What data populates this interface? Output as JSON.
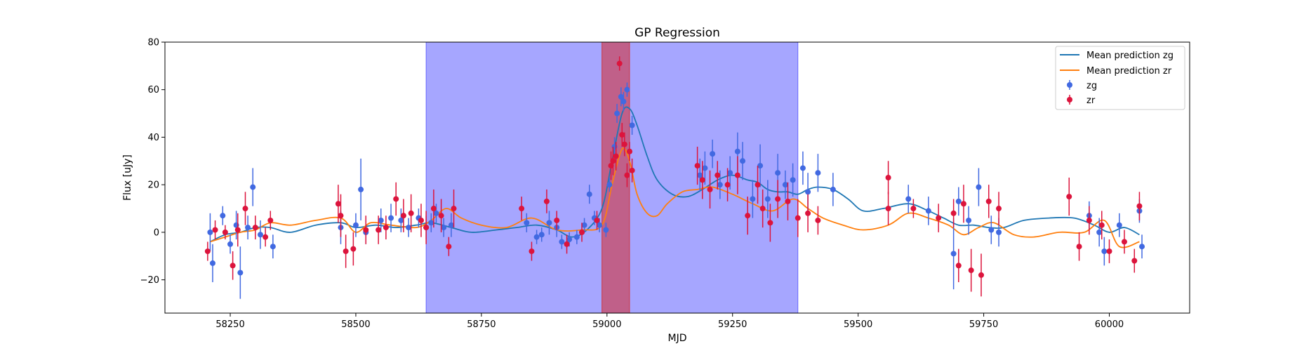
{
  "chart_data": {
    "type": "scatter",
    "title": "GP Regression",
    "xlabel": "MJD",
    "ylabel": "Flux [uJy]",
    "xlim": [
      58120,
      60160
    ],
    "ylim": [
      -34,
      80
    ],
    "xticks": [
      "58250",
      "58500",
      "58750",
      "59000",
      "59250",
      "59500",
      "59750",
      "60000"
    ],
    "yticks": [
      "−20",
      "0",
      "20",
      "40",
      "60",
      "80"
    ],
    "grid": false,
    "legend_position": "top-right",
    "legend": [
      "Mean prediction zg",
      "Mean prediction zr",
      "zg",
      "zr"
    ],
    "colors": {
      "zg_line": "#1f77b4",
      "zr_line": "#ff7f0e",
      "zg_points": "#4169e1",
      "zr_points": "#dc143c",
      "span_blue": "#4d4dff",
      "span_red": "#d62728"
    },
    "spans": [
      {
        "x0": 58640,
        "x1": 59380,
        "color": "blue"
      },
      {
        "x0": 58990,
        "x1": 59045,
        "color": "red"
      }
    ],
    "series": [
      {
        "name": "Mean prediction zg",
        "kind": "line",
        "x": [
          58210,
          58240,
          58270,
          58300,
          58330,
          58370,
          58420,
          58470,
          58500,
          58540,
          58580,
          58620,
          58650,
          58690,
          58730,
          58780,
          58820,
          58860,
          58900,
          58930,
          58960,
          58990,
          59010,
          59030,
          59045,
          59060,
          59080,
          59100,
          59130,
          59160,
          59190,
          59220,
          59250,
          59280,
          59300,
          59320,
          59340,
          59360,
          59380,
          59400,
          59420,
          59450,
          59480,
          59510,
          59550,
          59600,
          59640,
          59670,
          59700,
          59730,
          59760,
          59790,
          59830,
          59880,
          59930,
          59970,
          60000,
          60030,
          60060
        ],
        "y": [
          -4,
          -1,
          0,
          2,
          2,
          0,
          3,
          4,
          2,
          3,
          2,
          3,
          4,
          2,
          0,
          1,
          2,
          3,
          1,
          -2,
          1,
          10,
          30,
          50,
          52,
          45,
          32,
          22,
          16,
          15,
          18,
          22,
          24,
          22,
          21,
          18,
          17,
          17,
          16,
          18,
          19,
          18,
          14,
          9,
          10,
          12,
          9,
          6,
          3,
          3,
          2,
          2,
          5,
          6,
          6,
          3,
          0,
          2,
          -1
        ]
      },
      {
        "name": "Mean prediction zr",
        "kind": "line",
        "x": [
          58210,
          58240,
          58270,
          58300,
          58330,
          58370,
          58420,
          58470,
          58500,
          58530,
          58570,
          58620,
          58650,
          58680,
          58710,
          58750,
          58800,
          58850,
          58900,
          58950,
          58990,
          59010,
          59030,
          59045,
          59060,
          59080,
          59100,
          59120,
          59150,
          59180,
          59210,
          59250,
          59290,
          59330,
          59370,
          59400,
          59430,
          59470,
          59510,
          59560,
          59600,
          59640,
          59680,
          59710,
          59740,
          59770,
          59810,
          59850,
          59900,
          59950,
          59990,
          60020,
          60060
        ],
        "y": [
          -4,
          -2,
          0,
          1,
          4,
          3,
          5,
          6,
          0,
          4,
          3,
          2,
          5,
          10,
          6,
          3,
          2,
          6,
          1,
          1,
          3,
          20,
          35,
          30,
          16,
          8,
          7,
          12,
          17,
          18,
          19,
          16,
          12,
          9,
          14,
          10,
          6,
          3,
          1,
          3,
          8,
          6,
          3,
          -1,
          2,
          4,
          -1,
          -2,
          0,
          0,
          5,
          -6,
          -4
        ]
      },
      {
        "name": "zg",
        "kind": "errorbar",
        "x": [
          58210,
          58215,
          58235,
          58250,
          58262,
          58270,
          58285,
          58295,
          58310,
          58335,
          58470,
          58500,
          58510,
          58520,
          58550,
          58570,
          58590,
          58605,
          58625,
          58640,
          58650,
          58660,
          58675,
          58690,
          58840,
          58860,
          58870,
          58885,
          58900,
          58910,
          58925,
          58940,
          58955,
          58965,
          58975,
          58985,
          58998,
          59005,
          59015,
          59020,
          59028,
          59033,
          59040,
          59050,
          59185,
          59195,
          59210,
          59225,
          59245,
          59260,
          59270,
          59290,
          59305,
          59320,
          59340,
          59355,
          59370,
          59390,
          59400,
          59420,
          59450,
          59600,
          59640,
          59690,
          59700,
          59720,
          59740,
          59765,
          59780,
          59960,
          59980,
          59990,
          60020,
          60060,
          60065
        ],
        "y": [
          0,
          -13,
          7,
          -5,
          3,
          -17,
          2,
          19,
          -1,
          -6,
          2,
          3,
          18,
          0,
          5,
          6,
          5,
          2,
          6,
          2,
          4,
          8,
          2,
          3,
          4,
          -2,
          -1,
          4,
          2,
          -4,
          -3,
          -2,
          3,
          16,
          6,
          3,
          1,
          20,
          36,
          50,
          57,
          55,
          60,
          45,
          24,
          27,
          33,
          20,
          25,
          34,
          30,
          14,
          28,
          14,
          25,
          20,
          22,
          27,
          17,
          25,
          18,
          14,
          9,
          -9,
          13,
          5,
          19,
          1,
          0,
          7,
          0,
          -8,
          3,
          9,
          -6
        ],
        "err": [
          8,
          8,
          4,
          4,
          6,
          11,
          5,
          8,
          6,
          5,
          7,
          5,
          13,
          5,
          5,
          6,
          5,
          4,
          4,
          5,
          4,
          4,
          4,
          5,
          4,
          3,
          3,
          5,
          4,
          3,
          3,
          3,
          3,
          4,
          3,
          3,
          3,
          3,
          4,
          4,
          4,
          4,
          3,
          4,
          7,
          7,
          6,
          6,
          7,
          8,
          8,
          8,
          9,
          8,
          8,
          6,
          7,
          7,
          8,
          8,
          7,
          6,
          6,
          15,
          6,
          6,
          8,
          6,
          6,
          6,
          6,
          6,
          5,
          5,
          5
        ]
      },
      {
        "name": "zr",
        "kind": "errorbar",
        "x": [
          58205,
          58220,
          58240,
          58255,
          58265,
          58280,
          58300,
          58320,
          58330,
          58465,
          58470,
          58480,
          58495,
          58520,
          58545,
          58560,
          58580,
          58595,
          58610,
          58630,
          58640,
          58655,
          58670,
          58685,
          58695,
          58830,
          58850,
          58880,
          58900,
          58920,
          58950,
          58980,
          59008,
          59012,
          59018,
          59025,
          59030,
          59035,
          59040,
          59045,
          59050,
          59180,
          59190,
          59205,
          59220,
          59240,
          59260,
          59280,
          59300,
          59310,
          59325,
          59340,
          59360,
          59380,
          59400,
          59420,
          59560,
          59560,
          59610,
          59660,
          59690,
          59700,
          59710,
          59725,
          59745,
          59760,
          59780,
          59920,
          59940,
          59960,
          59985,
          60000,
          60030,
          60050,
          60060
        ],
        "y": [
          -8,
          1,
          0,
          -14,
          1,
          10,
          2,
          -2,
          5,
          12,
          7,
          -8,
          -7,
          1,
          1,
          2,
          14,
          7,
          8,
          5,
          2,
          10,
          7,
          -6,
          10,
          10,
          -8,
          13,
          5,
          -5,
          0,
          5,
          28,
          30,
          32,
          71,
          41,
          37,
          24,
          34,
          26,
          28,
          22,
          18,
          24,
          20,
          24,
          7,
          20,
          10,
          4,
          14,
          13,
          6,
          8,
          5,
          23,
          10,
          10,
          6,
          8,
          -14,
          12,
          -16,
          -18,
          13,
          10,
          15,
          -6,
          5,
          3,
          -8,
          -4,
          -12,
          11
        ],
        "err": [
          4,
          4,
          3,
          6,
          7,
          7,
          5,
          4,
          4,
          8,
          9,
          7,
          7,
          6,
          6,
          5,
          7,
          7,
          8,
          7,
          7,
          8,
          7,
          4,
          8,
          5,
          4,
          5,
          4,
          4,
          4,
          4,
          6,
          6,
          6,
          3,
          5,
          5,
          5,
          4,
          5,
          8,
          8,
          8,
          6,
          7,
          8,
          8,
          8,
          8,
          8,
          8,
          8,
          8,
          8,
          6,
          7,
          7,
          4,
          6,
          6,
          7,
          8,
          9,
          9,
          7,
          7,
          8,
          6,
          6,
          6,
          5,
          5,
          5,
          6
        ]
      }
    ]
  }
}
